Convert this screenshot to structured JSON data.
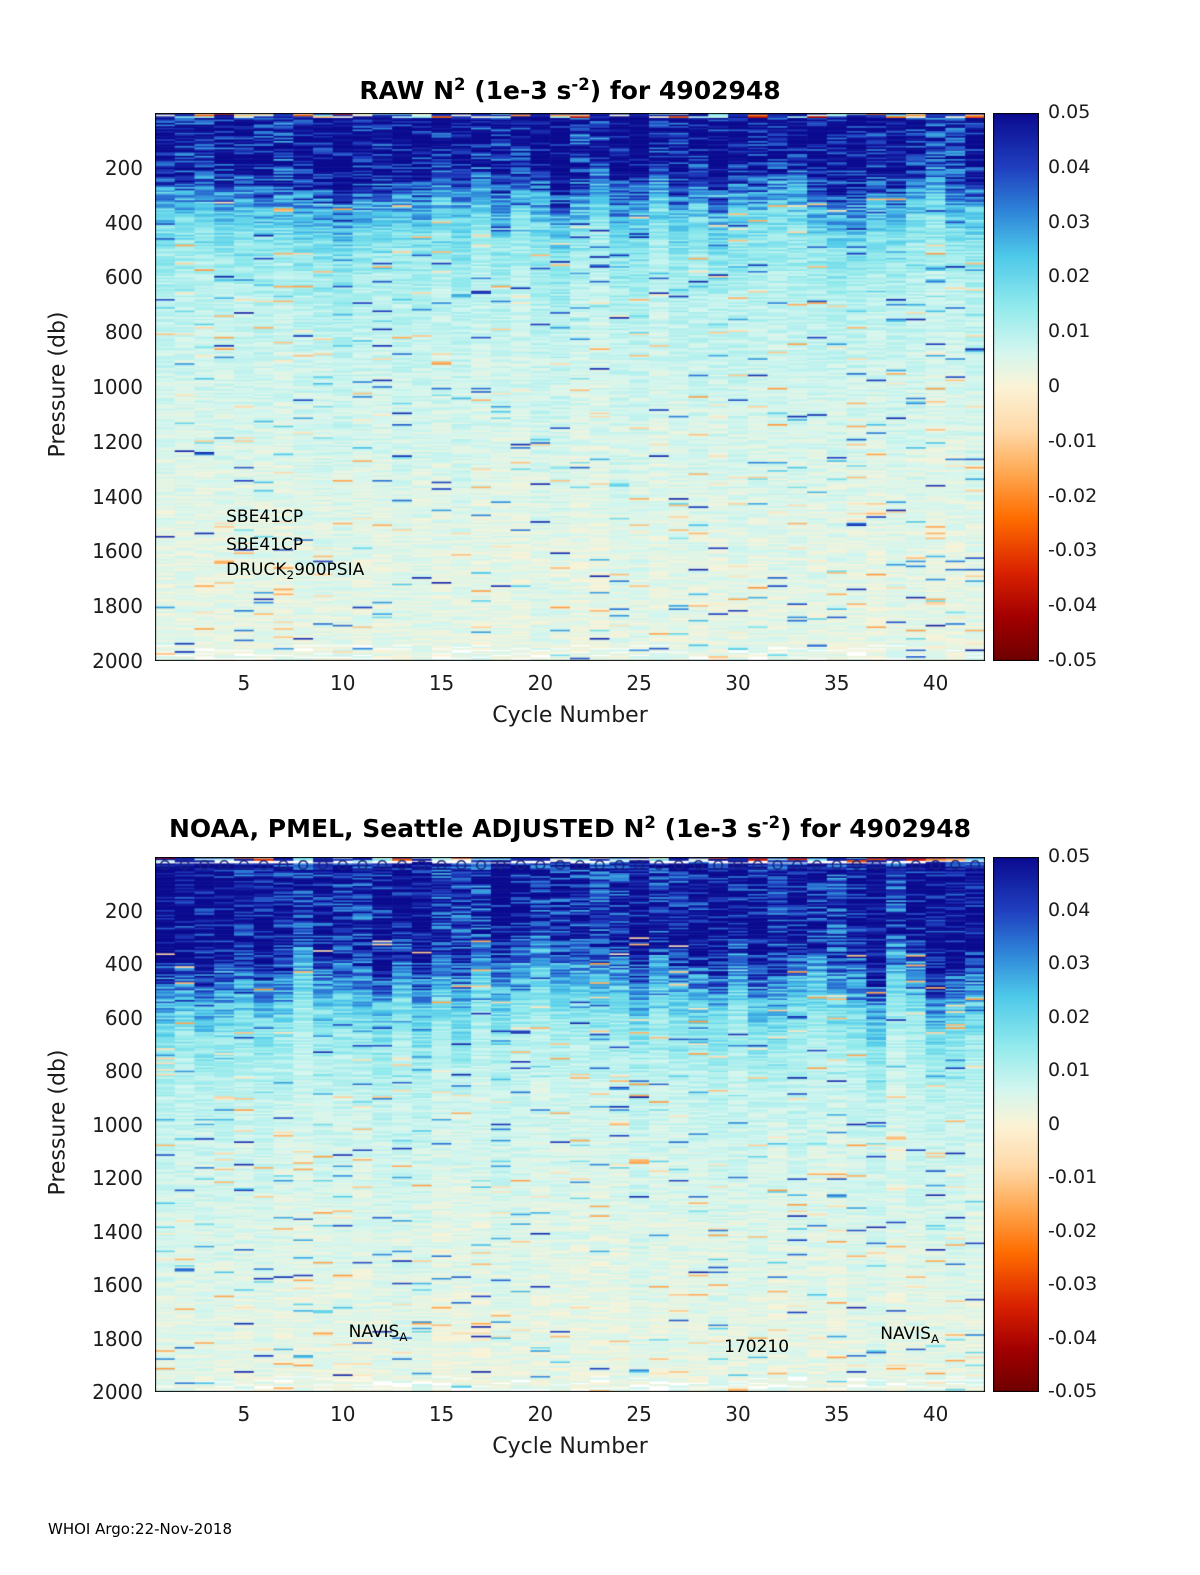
{
  "footer": "WHOI Argo:22-Nov-2018",
  "colormap": {
    "min": -0.05,
    "max": 0.05,
    "stops": [
      [
        0.0,
        "#6e0000"
      ],
      [
        0.08,
        "#a30000"
      ],
      [
        0.16,
        "#d92100"
      ],
      [
        0.26,
        "#ff6d00"
      ],
      [
        0.34,
        "#ffa64e"
      ],
      [
        0.42,
        "#ffd9a8"
      ],
      [
        0.5,
        "#fbf3d6"
      ],
      [
        0.565,
        "#d3f6ef"
      ],
      [
        0.65,
        "#8fe9ec"
      ],
      [
        0.74,
        "#4ec9e9"
      ],
      [
        0.82,
        "#2f86d9"
      ],
      [
        0.9,
        "#2040c0"
      ],
      [
        1.0,
        "#0b0b90"
      ]
    ]
  },
  "chart_data": [
    {
      "type": "heatmap",
      "title": "RAW N^2 (1e-3 s^-2) for 4902948",
      "title_segments": [
        {
          "t": "RAW N"
        },
        {
          "t": "2",
          "sup": true
        },
        {
          "t": " (1e-3 s",
          "pad": true
        },
        {
          "t": "-2",
          "sup": true
        },
        {
          "t": ") for 4902948"
        }
      ],
      "xlabel": "Cycle Number",
      "ylabel": "Pressure (db)",
      "x_range": [
        0.5,
        42.5
      ],
      "y_range": [
        0,
        2000
      ],
      "n_cycles": 42,
      "x_tick_values": [
        5,
        10,
        15,
        20,
        25,
        30,
        35,
        40
      ],
      "y_tick_values": [
        200,
        400,
        600,
        800,
        1000,
        1200,
        1400,
        1600,
        1800,
        2000
      ],
      "colorbar_ticks": [
        "0.05",
        "0.04",
        "0.03",
        "0.02",
        "0.01",
        "0",
        "-0.01",
        "-0.02",
        "-0.03",
        "-0.04",
        "-0.05"
      ],
      "value_profile": [
        [
          0,
          0.05
        ],
        [
          200,
          0.05
        ],
        [
          260,
          0.038
        ],
        [
          320,
          0.028
        ],
        [
          400,
          0.02
        ],
        [
          500,
          0.014
        ],
        [
          650,
          0.01
        ],
        [
          800,
          0.008
        ],
        [
          1000,
          0.0065
        ],
        [
          1300,
          0.005
        ],
        [
          1600,
          0.004
        ],
        [
          2000,
          0.0035
        ]
      ],
      "noise": {
        "col_factor_min": 0.82,
        "col_factor_max": 1.18,
        "depth_jitter": 110,
        "neg_prob": 0.02,
        "blue_dash_prob": 0.045,
        "blue_dash_min": 280
      },
      "seed": 1122,
      "annotations": [
        {
          "x": 4.1,
          "p": 1474,
          "segments": [
            {
              "t": "SBE41CP"
            }
          ]
        },
        {
          "x": 4.1,
          "p": 1577,
          "segments": [
            {
              "t": "SBE41CP"
            }
          ]
        },
        {
          "x": 4.1,
          "p": 1668,
          "segments": [
            {
              "t": "DRUCK"
            },
            {
              "t": "2",
              "sub": true
            },
            {
              "t": "900PSIA"
            }
          ]
        }
      ]
    },
    {
      "type": "heatmap",
      "title": "NOAA, PMEL, Seattle  ADJUSTED N^2 (1e-3 s^-2) for 4902948",
      "title_segments": [
        {
          "t": "NOAA, PMEL, Seattle  ADJUSTED N"
        },
        {
          "t": "2",
          "sup": true
        },
        {
          "t": " (1e-3 s",
          "pad": true
        },
        {
          "t": "-2",
          "sup": true
        },
        {
          "t": ") for 4902948"
        }
      ],
      "xlabel": "Cycle Number",
      "ylabel": "Pressure (db)",
      "x_range": [
        0.5,
        42.5
      ],
      "y_range": [
        0,
        2000
      ],
      "n_cycles": 42,
      "x_tick_values": [
        5,
        10,
        15,
        20,
        25,
        30,
        35,
        40
      ],
      "y_tick_values": [
        200,
        400,
        600,
        800,
        1000,
        1200,
        1400,
        1600,
        1800,
        2000
      ],
      "colorbar_ticks": [
        "0.05",
        "0.04",
        "0.03",
        "0.02",
        "0.01",
        "0",
        "-0.01",
        "-0.02",
        "-0.03",
        "-0.04",
        "-0.05"
      ],
      "value_profile": [
        [
          0,
          0.05
        ],
        [
          330,
          0.05
        ],
        [
          420,
          0.035
        ],
        [
          520,
          0.024
        ],
        [
          620,
          0.016
        ],
        [
          750,
          0.011
        ],
        [
          900,
          0.008
        ],
        [
          1100,
          0.0065
        ],
        [
          1400,
          0.005
        ],
        [
          1700,
          0.004
        ],
        [
          2000,
          0.0035
        ]
      ],
      "noise": {
        "col_factor_min": 0.82,
        "col_factor_max": 1.18,
        "depth_jitter": 160,
        "neg_prob": 0.022,
        "blue_dash_prob": 0.05,
        "blue_dash_min": 380
      },
      "seed": 2948,
      "surface_gap": true,
      "surface_markers": {
        "symbol": "o",
        "count": 42,
        "color": "#16247e"
      },
      "annotations": [
        {
          "x": 10.3,
          "p": 1775,
          "segments": [
            {
              "t": "NAVIS"
            },
            {
              "t": "A",
              "sub": true
            }
          ]
        },
        {
          "x": 29.3,
          "p": 1833,
          "segments": [
            {
              "t": "170210"
            }
          ]
        },
        {
          "x": 37.2,
          "p": 1782,
          "segments": [
            {
              "t": "NAVIS"
            },
            {
              "t": "A",
              "sub": true
            }
          ]
        }
      ]
    }
  ]
}
